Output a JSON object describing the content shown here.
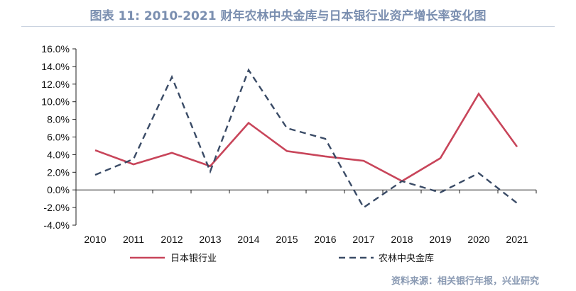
{
  "title": "图表 11: 2010-2021 财年农林中央金库与日本银行业资产增长率变化图",
  "source": "资料来源：相关银行年报，兴业研究",
  "colors": {
    "series1": "#c8455a",
    "series2": "#3a4b66",
    "title": "#7b8fb0"
  },
  "chart_data": {
    "type": "line",
    "title": "图表 11: 2010-2021 财年农林中央金库与日本银行业资产增长率变化图",
    "x": [
      "2010",
      "2011",
      "2012",
      "2013",
      "2014",
      "2015",
      "2016",
      "2017",
      "2018",
      "2019",
      "2020",
      "2021"
    ],
    "ylim": [
      -4.0,
      16.0
    ],
    "yticks": [
      "16.0%",
      "14.0%",
      "12.0%",
      "10.0%",
      "8.0%",
      "6.0%",
      "4.0%",
      "2.0%",
      "0.0%",
      "-2.0%",
      "-4.0%"
    ],
    "ytick_values": [
      16,
      14,
      12,
      10,
      8,
      6,
      4,
      2,
      0,
      -2,
      -4
    ],
    "grid": false,
    "legend_position": "bottom",
    "series": [
      {
        "name": "日本银行业",
        "style": "solid",
        "color": "#c8455a",
        "values": [
          4.5,
          2.9,
          4.2,
          2.7,
          7.6,
          4.4,
          3.8,
          3.3,
          1.0,
          3.6,
          10.9,
          4.9
        ]
      },
      {
        "name": "农林中央金库",
        "style": "dashed",
        "color": "#3a4b66",
        "values": [
          1.7,
          3.5,
          12.8,
          2.1,
          13.6,
          7.0,
          5.8,
          -2.0,
          1.0,
          -0.3,
          1.9,
          -1.5
        ]
      }
    ]
  }
}
